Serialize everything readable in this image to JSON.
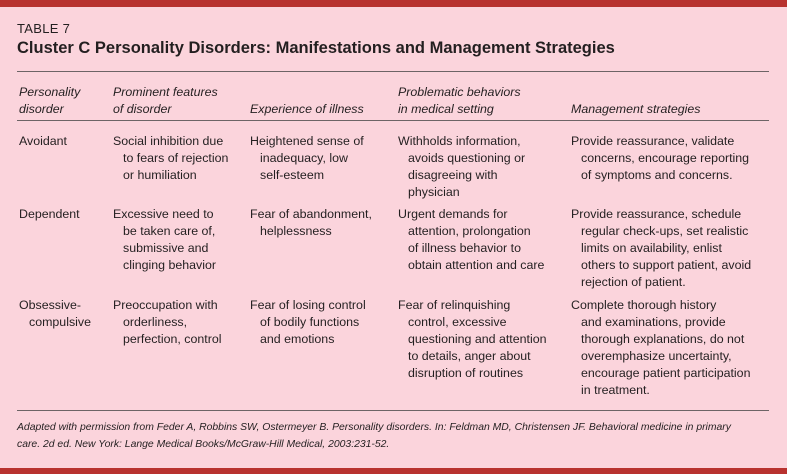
{
  "table_label": "TABLE 7",
  "title": "Cluster C Personality Disorders: Manifestations and Management Strategies",
  "headers": [
    [
      "Personality",
      "disorder"
    ],
    [
      "Prominent features",
      "of disorder"
    ],
    [
      "Experience of illness"
    ],
    [
      "Problematic behaviors",
      "in medical setting"
    ],
    [
      "Management strategies"
    ]
  ],
  "rows": [
    [
      [
        "Avoidant"
      ],
      [
        "Social inhibition due",
        "to fears of rejection",
        "or humiliation"
      ],
      [
        "Heightened sense of",
        "inadequacy, low",
        "self-esteem"
      ],
      [
        "Withholds information,",
        "avoids questioning or",
        "disagreeing with",
        "physician"
      ],
      [
        "Provide reassurance, validate",
        "concerns, encourage reporting",
        "of symptoms and concerns."
      ]
    ],
    [
      [
        "Dependent"
      ],
      [
        "Excessive need to",
        "be taken care of,",
        "submissive and",
        "clinging behavior"
      ],
      [
        "Fear of abandonment,",
        "helplessness"
      ],
      [
        "Urgent demands for",
        "attention, prolongation",
        "of illness behavior to",
        "obtain attention and care"
      ],
      [
        "Provide reassurance, schedule",
        "regular check-ups, set realistic",
        "limits on availability, enlist",
        "others to support patient, avoid",
        "rejection of patient."
      ]
    ],
    [
      [
        "Obsessive-",
        "compulsive"
      ],
      [
        "Preoccupation with",
        "orderliness,",
        "perfection, control"
      ],
      [
        "Fear of losing control",
        "of bodily functions",
        "and emotions"
      ],
      [
        "Fear of relinquishing",
        "control, excessive",
        "questioning and attention",
        "to details, anger about",
        "disruption of routines"
      ],
      [
        "Complete thorough history",
        "and examinations, provide",
        "thorough explanations, do not",
        "overemphasize uncertainty,",
        "encourage patient participation",
        "in treatment."
      ]
    ]
  ],
  "footnote": [
    "Adapted with permission from Feder A, Robbins SW, Ostermeyer B. Personality disorders. In: Feldman MD, Christensen JF. Behavioral medicine in primary",
    "care. 2d ed. New York: Lange Medical Books/McGraw-Hill Medical, 2003:231-52."
  ],
  "colors": {
    "background": "#fbd4dc",
    "accent_bar": "#b8322f",
    "text": "#231f20",
    "rule": "#6d6466"
  }
}
